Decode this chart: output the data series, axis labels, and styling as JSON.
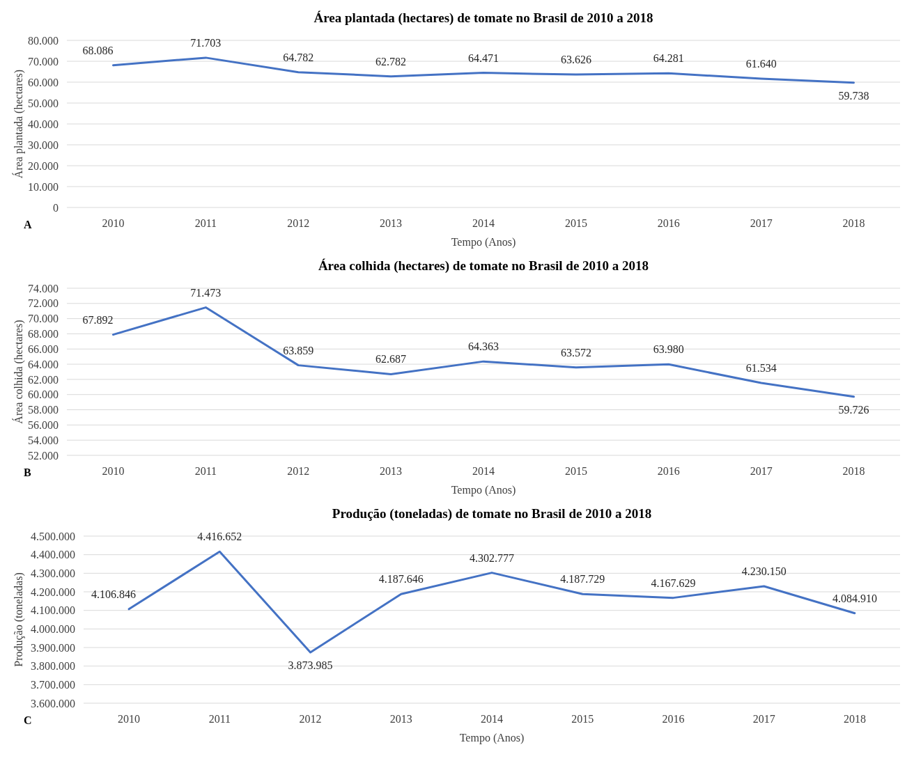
{
  "chart_data": [
    {
      "type": "line",
      "title": "Área plantada  (hectares) de tomate no Brasil  de 2010 a 2018",
      "xlabel": "Tempo  (Anos)",
      "ylabel": "Área plantada  (hectares)",
      "categories": [
        "2010",
        "2011",
        "2012",
        "2013",
        "2014",
        "2015",
        "2016",
        "2017",
        "2018"
      ],
      "series": [
        {
          "color": "#4472c4",
          "values": [
            68086,
            71703,
            64782,
            62782,
            64471,
            63626,
            64281,
            61640,
            59738
          ]
        }
      ],
      "value_labels": [
        "68.086",
        "71.703",
        "64.782",
        "62.782",
        "64.471",
        "63.626",
        "64.281",
        "61.640",
        "59.738"
      ],
      "ylim": [
        0,
        80000
      ],
      "yticks": [
        {
          "value": 0,
          "label": "0"
        },
        {
          "value": 10000,
          "label": "10.000"
        },
        {
          "value": 20000,
          "label": "20.000"
        },
        {
          "value": 30000,
          "label": "30.000"
        },
        {
          "value": 40000,
          "label": "40.000"
        },
        {
          "value": 50000,
          "label": "50.000"
        },
        {
          "value": 60000,
          "label": "60.000"
        },
        {
          "value": 70000,
          "label": "70.000"
        },
        {
          "value": 80000,
          "label": "80.000"
        }
      ],
      "grid": "y",
      "marker": "none",
      "line_style": "solid",
      "annotations": [
        "A"
      ]
    },
    {
      "type": "line",
      "title": "Área colhida  (hectares) de tomate no Brasil de 2010 a 2018",
      "xlabel": "Tempo  (Anos)",
      "ylabel": "Área colhida  (hectares)",
      "categories": [
        "2010",
        "2011",
        "2012",
        "2013",
        "2014",
        "2015",
        "2016",
        "2017",
        "2018"
      ],
      "series": [
        {
          "color": "#4472c4",
          "values": [
            67892,
            71473,
            63859,
            62687,
            64363,
            63572,
            63980,
            61534,
            59726
          ]
        }
      ],
      "value_labels": [
        "67.892",
        "71.473",
        "63.859",
        "62.687",
        "64.363",
        "63.572",
        "63.980",
        "61.534",
        "59.726"
      ],
      "ylim": [
        52000,
        74000
      ],
      "yticks": [
        {
          "value": 52000,
          "label": "52.000"
        },
        {
          "value": 54000,
          "label": "54.000"
        },
        {
          "value": 56000,
          "label": "56.000"
        },
        {
          "value": 58000,
          "label": "58.000"
        },
        {
          "value": 60000,
          "label": "60.000"
        },
        {
          "value": 62000,
          "label": "62.000"
        },
        {
          "value": 64000,
          "label": "64.000"
        },
        {
          "value": 66000,
          "label": "66.000"
        },
        {
          "value": 68000,
          "label": "68.000"
        },
        {
          "value": 70000,
          "label": "70.000"
        },
        {
          "value": 72000,
          "label": "72.000"
        },
        {
          "value": 74000,
          "label": "74.000"
        }
      ],
      "grid": "y",
      "marker": "none",
      "line_style": "solid",
      "annotations": [
        "B"
      ]
    },
    {
      "type": "line",
      "title": "Produção  (toneladas) de tomate no Brasil de 2010 a 2018",
      "xlabel": "Tempo  (Anos)",
      "ylabel": "Produção  (toneladas)",
      "categories": [
        "2010",
        "2011",
        "2012",
        "2013",
        "2014",
        "2015",
        "2016",
        "2017",
        "2018"
      ],
      "series": [
        {
          "color": "#4472c4",
          "values": [
            4106846,
            4416652,
            3873985,
            4187646,
            4302777,
            4187729,
            4167629,
            4230150,
            4084910
          ]
        }
      ],
      "value_labels": [
        "4.106.846",
        "4.416.652",
        "3.873.985",
        "4.187.646",
        "4.302.777",
        "4.187.729",
        "4.167.629",
        "4.230.150",
        "4.084.910"
      ],
      "ylim": [
        3600000,
        4500000
      ],
      "yticks": [
        {
          "value": 3600000,
          "label": "3.600.000"
        },
        {
          "value": 3700000,
          "label": "3.700.000"
        },
        {
          "value": 3800000,
          "label": "3.800.000"
        },
        {
          "value": 3900000,
          "label": "3.900.000"
        },
        {
          "value": 4000000,
          "label": "4.000.000"
        },
        {
          "value": 4100000,
          "label": "4.100.000"
        },
        {
          "value": 4200000,
          "label": "4.200.000"
        },
        {
          "value": 4300000,
          "label": "4.300.000"
        },
        {
          "value": 4400000,
          "label": "4.400.000"
        },
        {
          "value": 4500000,
          "label": "4.500.000"
        }
      ],
      "grid": "y",
      "marker": "none",
      "line_style": "solid",
      "annotations": [
        "C"
      ]
    }
  ]
}
